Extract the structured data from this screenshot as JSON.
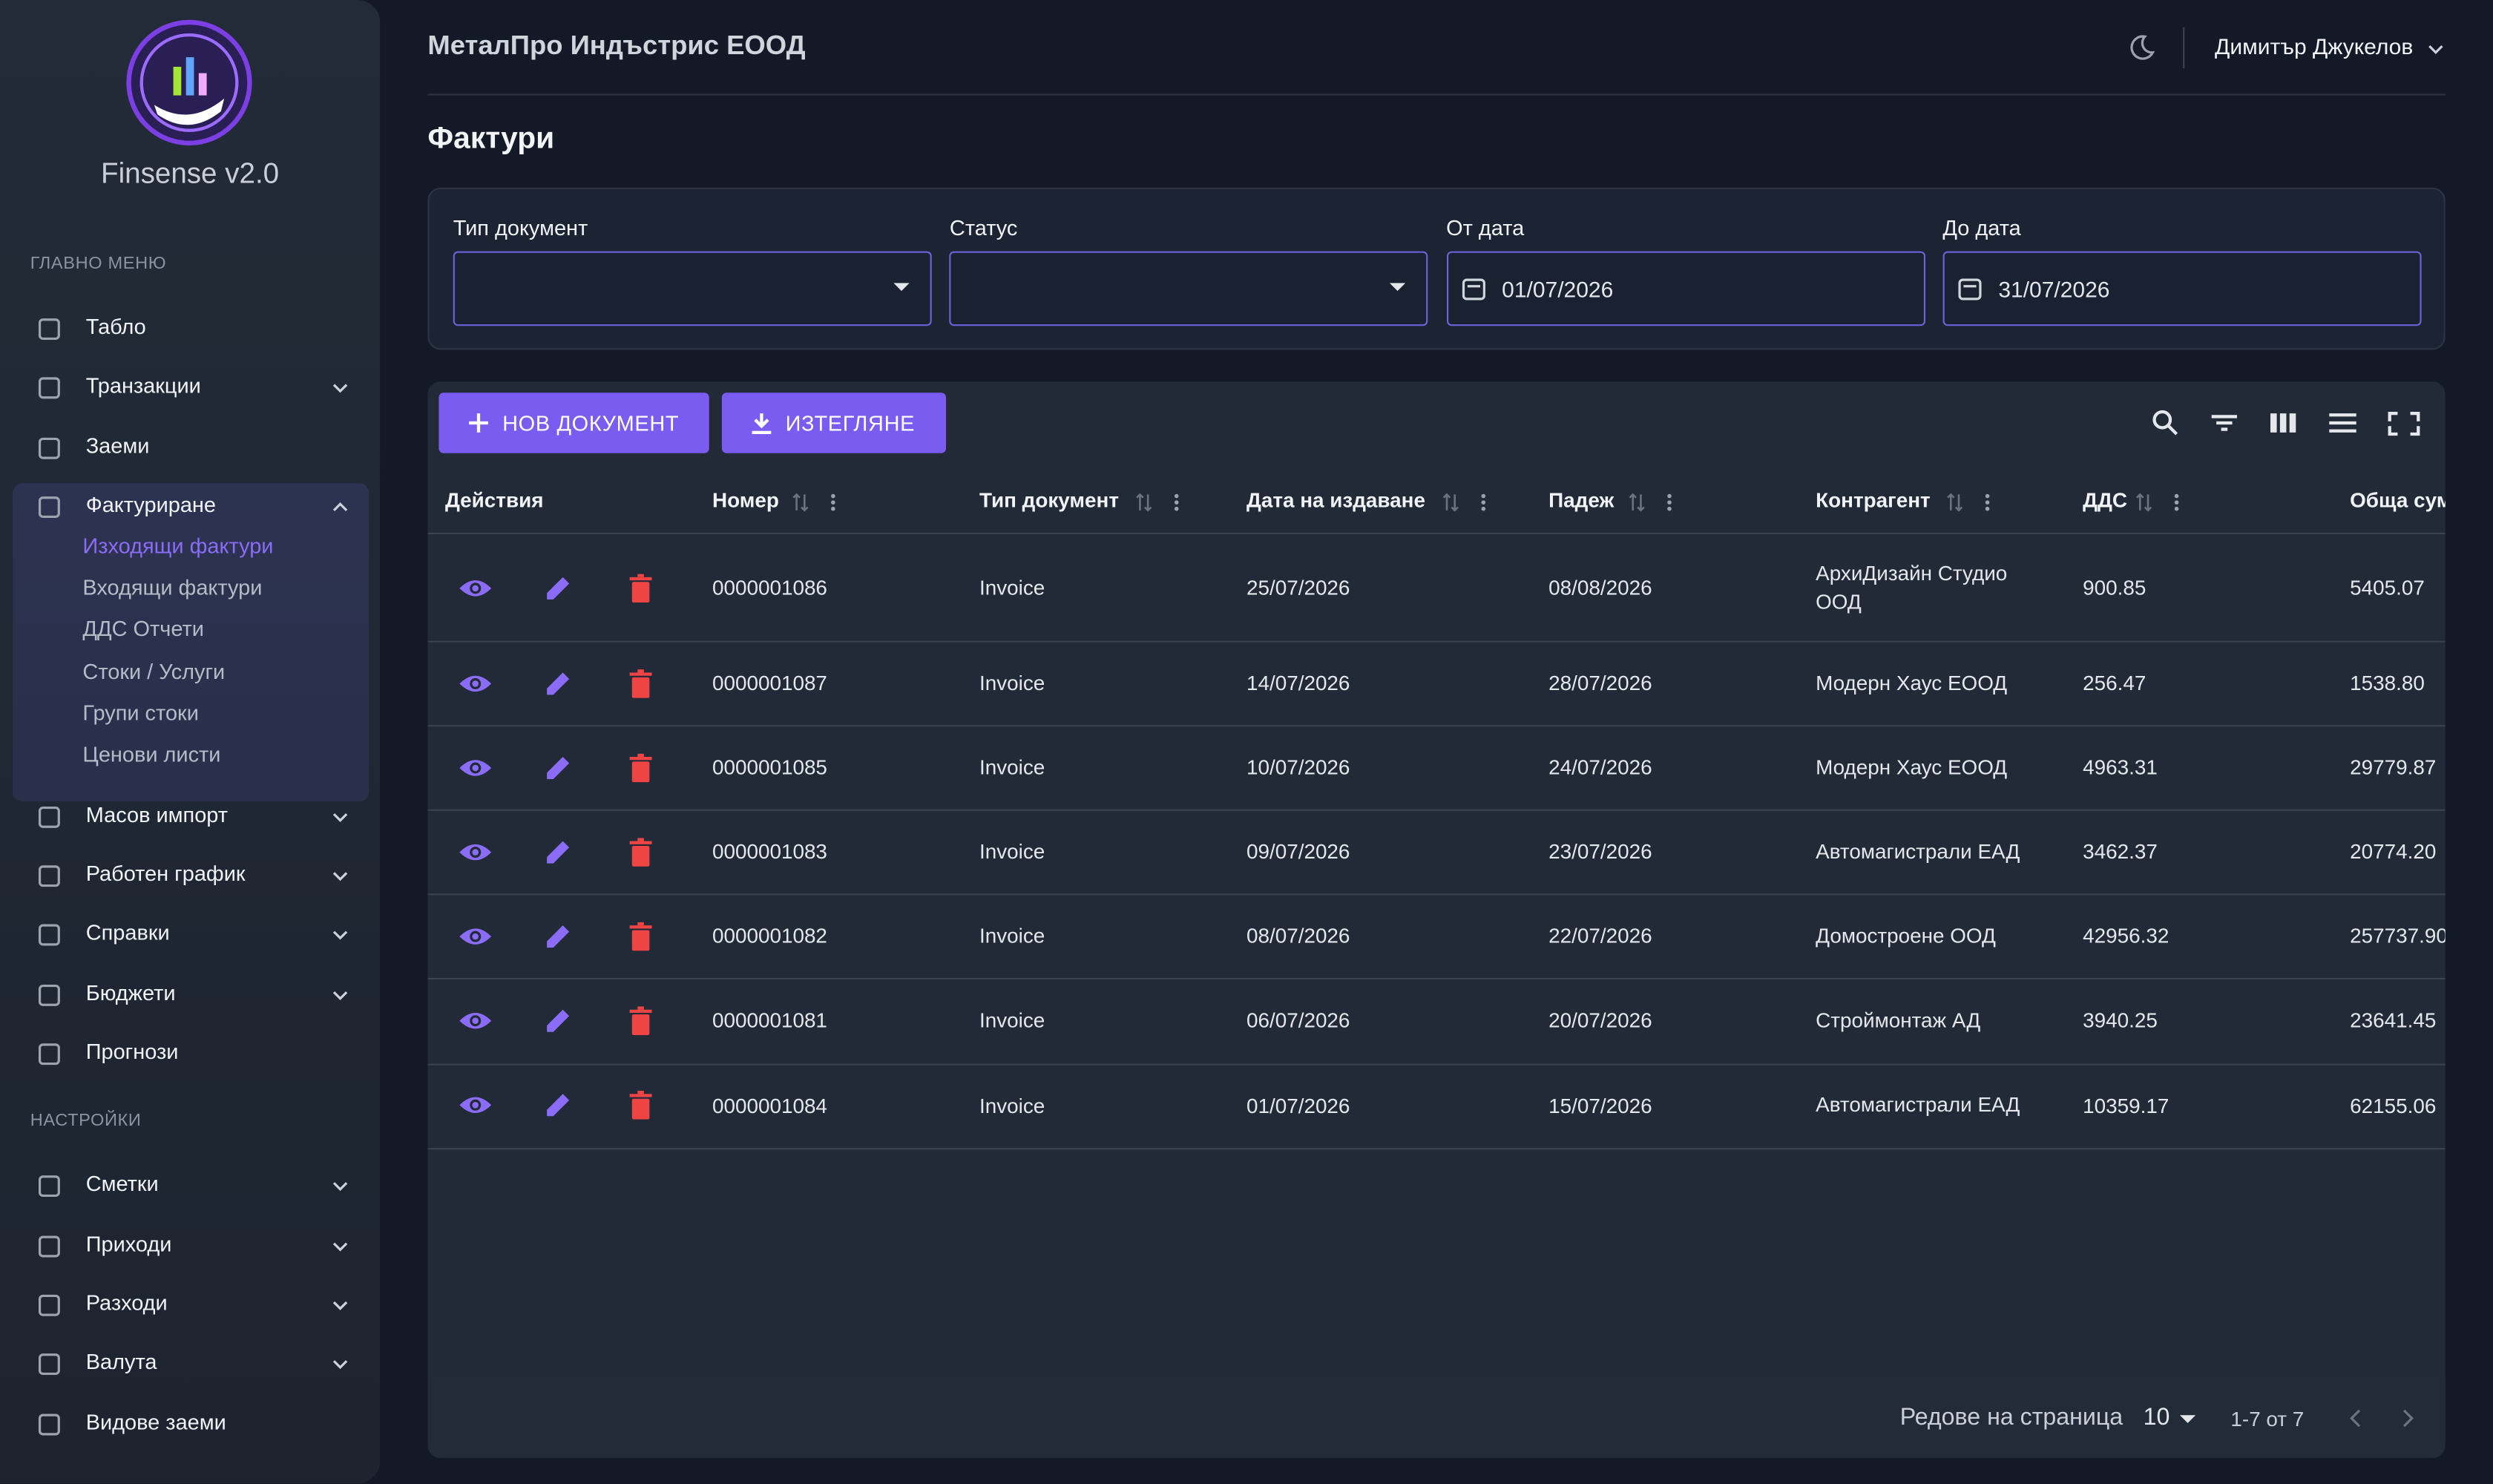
{
  "app": {
    "name": "Finsense v2.0"
  },
  "header": {
    "company": "МеталПро Индъстрис ЕООД",
    "user": "Димитър Джукелов"
  },
  "sidebar": {
    "sections": [
      {
        "title": "ГЛАВНО МЕНЮ",
        "items": [
          {
            "label": "Табло"
          },
          {
            "label": "Транзакции",
            "expandable": true
          },
          {
            "label": "Заеми"
          },
          {
            "label": "Фактуриране",
            "expandable": true,
            "open": true,
            "active_child": 0,
            "children": [
              "Изходящи фактури",
              "Входящи фактури",
              "ДДС Отчети",
              "Стоки / Услуги",
              "Групи стоки",
              "Ценови листи"
            ]
          },
          {
            "label": "Масов импорт",
            "expandable": true
          },
          {
            "label": "Работен график",
            "expandable": true
          },
          {
            "label": "Справки",
            "expandable": true
          },
          {
            "label": "Бюджети",
            "expandable": true
          },
          {
            "label": "Прогнози"
          }
        ]
      },
      {
        "title": "НАСТРОЙКИ",
        "items": [
          {
            "label": "Сметки",
            "expandable": true
          },
          {
            "label": "Приходи",
            "expandable": true
          },
          {
            "label": "Разходи",
            "expandable": true
          },
          {
            "label": "Валута",
            "expandable": true
          },
          {
            "label": "Видове заеми"
          }
        ]
      }
    ]
  },
  "page": {
    "title": "Фактури"
  },
  "filters": [
    {
      "label": "Тип документ",
      "kind": "select"
    },
    {
      "label": "Статус",
      "kind": "select"
    },
    {
      "label": "От дата",
      "kind": "date",
      "value": "01/07/2026"
    },
    {
      "label": "До дата",
      "kind": "date",
      "value": "31/07/2026"
    }
  ],
  "buttons": [
    "НОВ ДОКУМЕНТ",
    "ИЗТЕГЛЯНЕ"
  ],
  "table": {
    "columns": [
      "Действия",
      "Номер",
      "Тип документ",
      "Дата на издаване",
      "Падеж",
      "Контрагент",
      "ДДС",
      "Обща сума"
    ],
    "rows": [
      [
        "0000001086",
        "Invoice",
        "25/07/2026",
        "08/08/2026",
        "АрхиДизайн Студио ООД",
        "900.85",
        "5405.07"
      ],
      [
        "0000001087",
        "Invoice",
        "14/07/2026",
        "28/07/2026",
        "Модерн Хаус ЕООД",
        "256.47",
        "1538.80"
      ],
      [
        "0000001085",
        "Invoice",
        "10/07/2026",
        "24/07/2026",
        "Модерн Хаус ЕООД",
        "4963.31",
        "29779.87"
      ],
      [
        "0000001083",
        "Invoice",
        "09/07/2026",
        "23/07/2026",
        "Автомагистрали ЕАД",
        "3462.37",
        "20774.20"
      ],
      [
        "0000001082",
        "Invoice",
        "08/07/2026",
        "22/07/2026",
        "Домостроене ООД",
        "42956.32",
        "257737.90"
      ],
      [
        "0000001081",
        "Invoice",
        "06/07/2026",
        "20/07/2026",
        "Строймонтаж АД",
        "3940.25",
        "23641.45"
      ],
      [
        "0000001084",
        "Invoice",
        "01/07/2026",
        "15/07/2026",
        "Автомагистрали ЕАД",
        "10359.17",
        "62155.06"
      ]
    ]
  },
  "footer": {
    "rows_per_page_label": "Редове на страница",
    "rows_per_page": "10",
    "range": "1-7 от 7"
  }
}
